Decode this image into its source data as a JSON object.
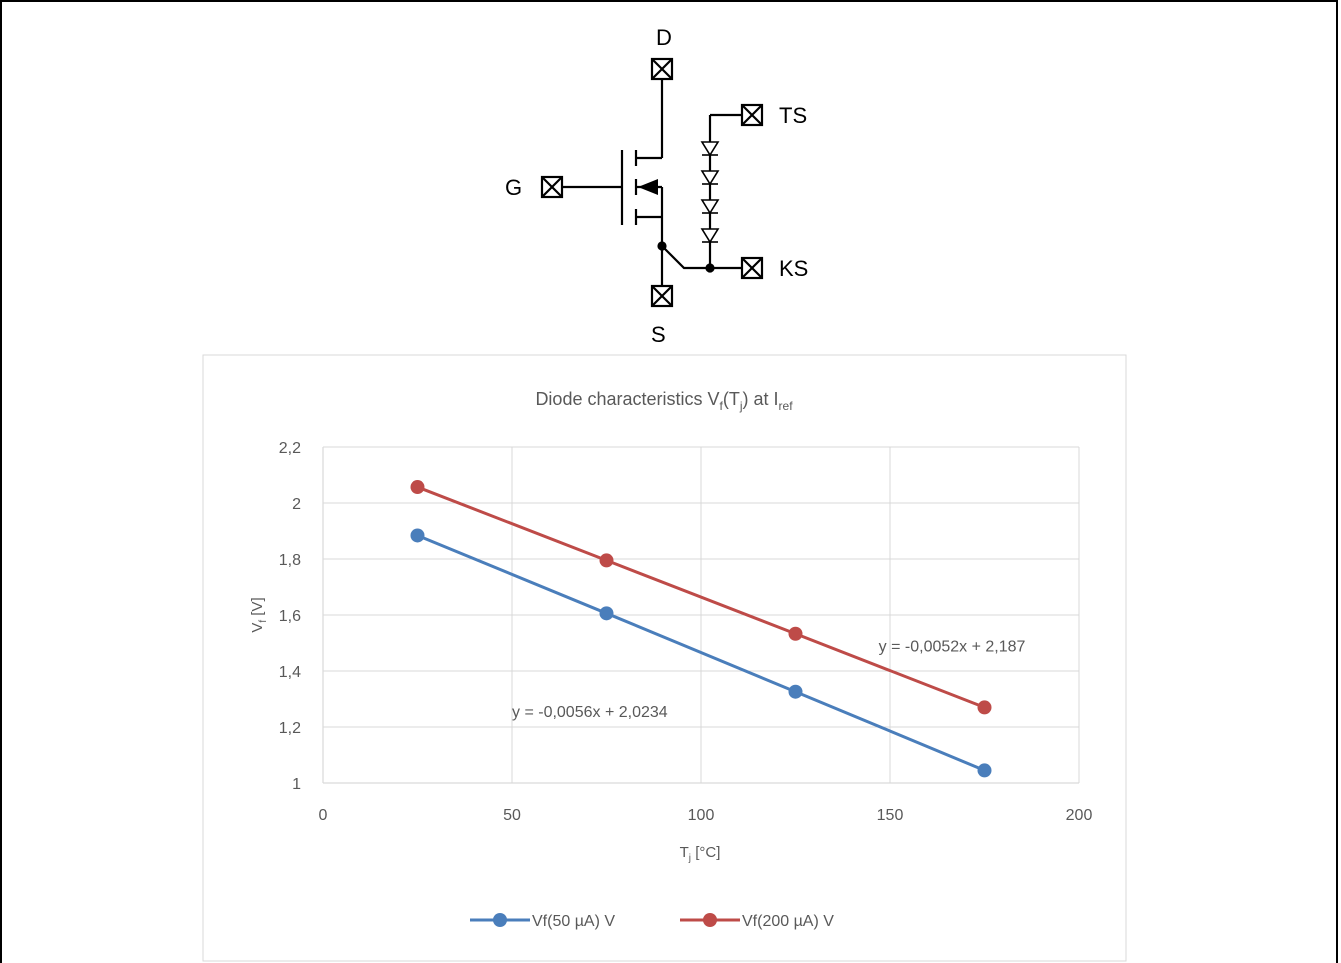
{
  "schematic": {
    "terminals": [
      {
        "id": "drain",
        "label": "D"
      },
      {
        "id": "gate",
        "label": "G"
      },
      {
        "id": "source",
        "label": "S"
      },
      {
        "id": "temp-sense",
        "label": "TS"
      },
      {
        "id": "kelvin-source",
        "label": "KS"
      }
    ]
  },
  "chart_data": {
    "type": "scatter",
    "title": {
      "main": "Diode characteristics V",
      "sub1": "f",
      "mid1": "(T",
      "sub2": "j",
      "mid2": ") at I",
      "sub3": "ref"
    },
    "xlabel": {
      "main": "T",
      "sub": "j",
      "rest": " [°C]"
    },
    "ylabel": {
      "main": "V",
      "sub": "f",
      "rest": " [V]"
    },
    "xlim": [
      0,
      200
    ],
    "ylim": [
      1,
      2.2
    ],
    "x_ticks": [
      0,
      50,
      100,
      150,
      200
    ],
    "x_tick_labels": [
      "0",
      "50",
      "100",
      "150",
      "200"
    ],
    "y_ticks": [
      1,
      1.2,
      1.4,
      1.6,
      1.8,
      2,
      2.2
    ],
    "y_tick_labels": [
      "1",
      "1,2",
      "1,4",
      "1,6",
      "1,8",
      "2",
      "2,2"
    ],
    "grid": true,
    "legend_position": "bottom",
    "series": [
      {
        "name": "Vf(50 µA) V",
        "color": "#4a7ebb",
        "x": [
          25,
          75,
          125,
          175
        ],
        "y": [
          1.884,
          1.606,
          1.326,
          1.045
        ],
        "trendline": "y = -0,0056x + 2,0234"
      },
      {
        "name": "Vf(200 µA) V",
        "color": "#be4b48",
        "x": [
          25,
          75,
          125,
          175
        ],
        "y": [
          2.057,
          1.795,
          1.533,
          1.27
        ],
        "trendline": "y = -0,0052x + 2,187"
      }
    ]
  }
}
